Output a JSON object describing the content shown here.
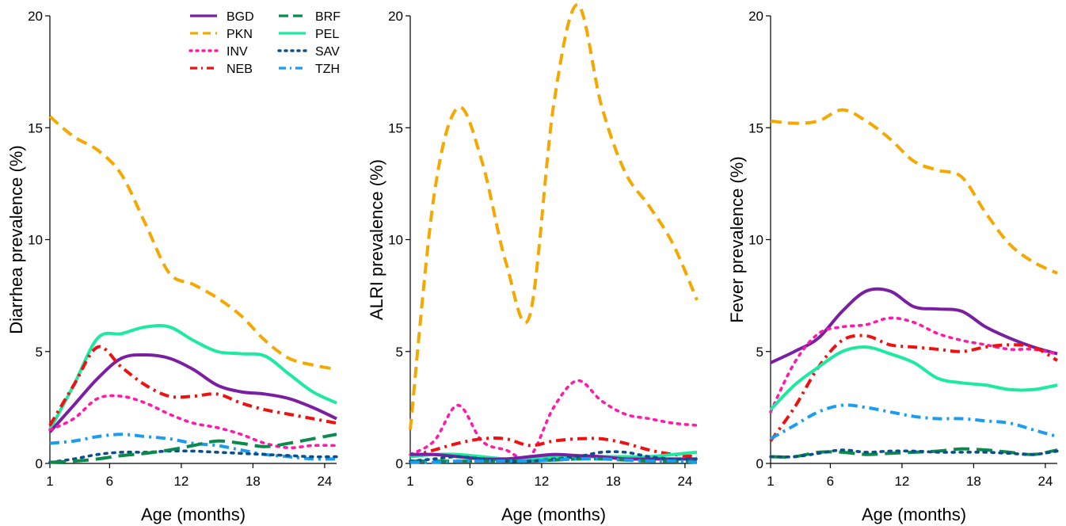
{
  "colors": {
    "BGD": "#7b1fa2",
    "PKN": "#f5a800",
    "INV": "#ff1aab",
    "NEB": "#ee1111",
    "BRF": "#0b8a4c",
    "PEL": "#1de9a0",
    "SAV": "#0b4f8c",
    "TZH": "#1a9cf0"
  },
  "styles": {
    "BGD": "solid",
    "PKN": "dashed",
    "INV": "dotted",
    "NEB": "dashdot",
    "BRF": "longdash",
    "PEL": "solid",
    "SAV": "dotted",
    "TZH": "dashdot"
  },
  "legend": {
    "items": [
      "BGD",
      "PKN",
      "INV",
      "NEB",
      "BRF",
      "PEL",
      "SAV",
      "TZH"
    ],
    "placement": "top-right of first panel, two columns"
  },
  "chart_data": [
    {
      "type": "line",
      "title": "",
      "xlabel": "Age (months)",
      "ylabel": "Diarrhea prevalence (%)",
      "xlim": [
        1,
        25
      ],
      "ylim": [
        0,
        20
      ],
      "xticks": [
        1,
        6,
        12,
        18,
        24
      ],
      "yticks": [
        0,
        5,
        10,
        15,
        20
      ],
      "grid": false,
      "x": [
        1,
        3,
        5,
        7,
        9,
        11,
        13,
        15,
        17,
        19,
        21,
        23,
        25
      ],
      "series": [
        {
          "name": "PKN",
          "values": [
            15.5,
            14.6,
            14.0,
            12.9,
            10.7,
            8.5,
            8.0,
            7.4,
            6.6,
            5.5,
            4.7,
            4.4,
            4.2
          ]
        },
        {
          "name": "PEL",
          "values": [
            1.5,
            3.5,
            5.6,
            5.8,
            6.1,
            6.1,
            5.5,
            5.0,
            4.9,
            4.8,
            4.0,
            3.2,
            2.7
          ]
        },
        {
          "name": "BGD",
          "values": [
            1.4,
            2.6,
            3.8,
            4.7,
            4.85,
            4.7,
            4.2,
            3.5,
            3.2,
            3.1,
            2.9,
            2.5,
            2.0
          ]
        },
        {
          "name": "NEB",
          "values": [
            1.7,
            3.5,
            5.2,
            4.3,
            3.5,
            3.0,
            3.0,
            3.1,
            2.7,
            2.4,
            2.2,
            2.0,
            1.8
          ]
        },
        {
          "name": "INV",
          "values": [
            1.5,
            2.0,
            2.9,
            3.0,
            2.7,
            2.2,
            1.8,
            1.6,
            1.3,
            0.9,
            0.7,
            0.8,
            0.8
          ]
        },
        {
          "name": "TZH",
          "values": [
            0.9,
            1.0,
            1.2,
            1.3,
            1.2,
            1.1,
            0.9,
            0.8,
            0.6,
            0.4,
            0.3,
            0.2,
            0.2
          ]
        },
        {
          "name": "SAV",
          "values": [
            0.05,
            0.2,
            0.4,
            0.5,
            0.5,
            0.55,
            0.55,
            0.5,
            0.45,
            0.4,
            0.35,
            0.3,
            0.3
          ]
        },
        {
          "name": "BRF",
          "values": [
            0.05,
            0.1,
            0.2,
            0.35,
            0.45,
            0.6,
            0.8,
            1.0,
            0.9,
            0.75,
            0.9,
            1.1,
            1.3
          ]
        }
      ]
    },
    {
      "type": "line",
      "title": "",
      "xlabel": "Age (months)",
      "ylabel": "ALRI prevalence (%)",
      "xlim": [
        1,
        25
      ],
      "ylim": [
        0,
        20
      ],
      "xticks": [
        1,
        6,
        12,
        18,
        24
      ],
      "yticks": [
        0,
        5,
        10,
        15,
        20
      ],
      "grid": false,
      "x": [
        1,
        3,
        5,
        7,
        9,
        11,
        13,
        15,
        17,
        19,
        21,
        23,
        25
      ],
      "series": [
        {
          "name": "PKN",
          "values": [
            1.5,
            12.0,
            15.9,
            13.5,
            9.0,
            6.6,
            16.0,
            20.5,
            16.0,
            13.0,
            11.5,
            9.8,
            7.3
          ]
        },
        {
          "name": "INV",
          "values": [
            0.4,
            1.0,
            2.6,
            1.0,
            0.6,
            0.3,
            2.5,
            3.7,
            2.8,
            2.2,
            2.0,
            1.8,
            1.7
          ]
        },
        {
          "name": "NEB",
          "values": [
            0.3,
            0.6,
            0.9,
            1.1,
            1.1,
            0.8,
            1.0,
            1.1,
            1.1,
            0.9,
            0.6,
            0.4,
            0.3
          ]
        },
        {
          "name": "PEL",
          "values": [
            0.3,
            0.4,
            0.4,
            0.3,
            0.2,
            0.2,
            0.3,
            0.3,
            0.3,
            0.3,
            0.3,
            0.4,
            0.5
          ]
        },
        {
          "name": "BGD",
          "values": [
            0.4,
            0.4,
            0.3,
            0.2,
            0.2,
            0.3,
            0.4,
            0.35,
            0.3,
            0.2,
            0.2,
            0.2,
            0.2
          ]
        },
        {
          "name": "BRF",
          "values": [
            0.1,
            0.1,
            0.1,
            0.1,
            0.1,
            0.1,
            0.15,
            0.2,
            0.2,
            0.15,
            0.1,
            0.1,
            0.1
          ]
        },
        {
          "name": "SAV",
          "values": [
            0.1,
            0.2,
            0.3,
            0.2,
            0.1,
            0.1,
            0.2,
            0.3,
            0.5,
            0.5,
            0.3,
            0.2,
            0.2
          ]
        },
        {
          "name": "TZH",
          "values": [
            0.05,
            0.05,
            0.1,
            0.1,
            0.1,
            0.1,
            0.15,
            0.2,
            0.2,
            0.15,
            0.1,
            0.1,
            0.05
          ]
        }
      ]
    },
    {
      "type": "line",
      "title": "",
      "xlabel": "Age (months)",
      "ylabel": "Fever prevalence (%)",
      "xlim": [
        1,
        25
      ],
      "ylim": [
        0,
        20
      ],
      "xticks": [
        1,
        6,
        12,
        18,
        24
      ],
      "yticks": [
        0,
        5,
        10,
        15,
        20
      ],
      "grid": false,
      "x": [
        1,
        3,
        5,
        7,
        9,
        11,
        13,
        15,
        17,
        19,
        21,
        23,
        25
      ],
      "series": [
        {
          "name": "PKN",
          "values": [
            15.3,
            15.2,
            15.3,
            15.8,
            15.3,
            14.5,
            13.5,
            13.1,
            12.8,
            11.2,
            9.8,
            9.0,
            8.5
          ]
        },
        {
          "name": "BGD",
          "values": [
            4.5,
            5.0,
            5.6,
            6.8,
            7.7,
            7.7,
            7.0,
            6.9,
            6.8,
            6.1,
            5.6,
            5.2,
            4.9
          ]
        },
        {
          "name": "INV",
          "values": [
            2.3,
            4.5,
            5.8,
            6.1,
            6.2,
            6.5,
            6.3,
            5.8,
            5.5,
            5.3,
            5.1,
            5.1,
            4.9
          ]
        },
        {
          "name": "NEB",
          "values": [
            1.0,
            2.5,
            4.3,
            5.5,
            5.7,
            5.3,
            5.2,
            5.1,
            5.0,
            5.2,
            5.3,
            5.2,
            4.6
          ]
        },
        {
          "name": "PEL",
          "values": [
            2.4,
            3.5,
            4.3,
            5.0,
            5.2,
            4.9,
            4.5,
            3.8,
            3.6,
            3.5,
            3.3,
            3.3,
            3.5
          ]
        },
        {
          "name": "TZH",
          "values": [
            1.1,
            1.7,
            2.3,
            2.6,
            2.5,
            2.3,
            2.1,
            2.0,
            2.0,
            1.9,
            1.8,
            1.5,
            1.2
          ]
        },
        {
          "name": "BRF",
          "values": [
            0.3,
            0.3,
            0.5,
            0.5,
            0.4,
            0.45,
            0.5,
            0.55,
            0.65,
            0.6,
            0.5,
            0.4,
            0.6
          ]
        },
        {
          "name": "SAV",
          "values": [
            0.3,
            0.3,
            0.45,
            0.6,
            0.5,
            0.55,
            0.55,
            0.5,
            0.5,
            0.5,
            0.45,
            0.4,
            0.55
          ]
        }
      ]
    }
  ]
}
